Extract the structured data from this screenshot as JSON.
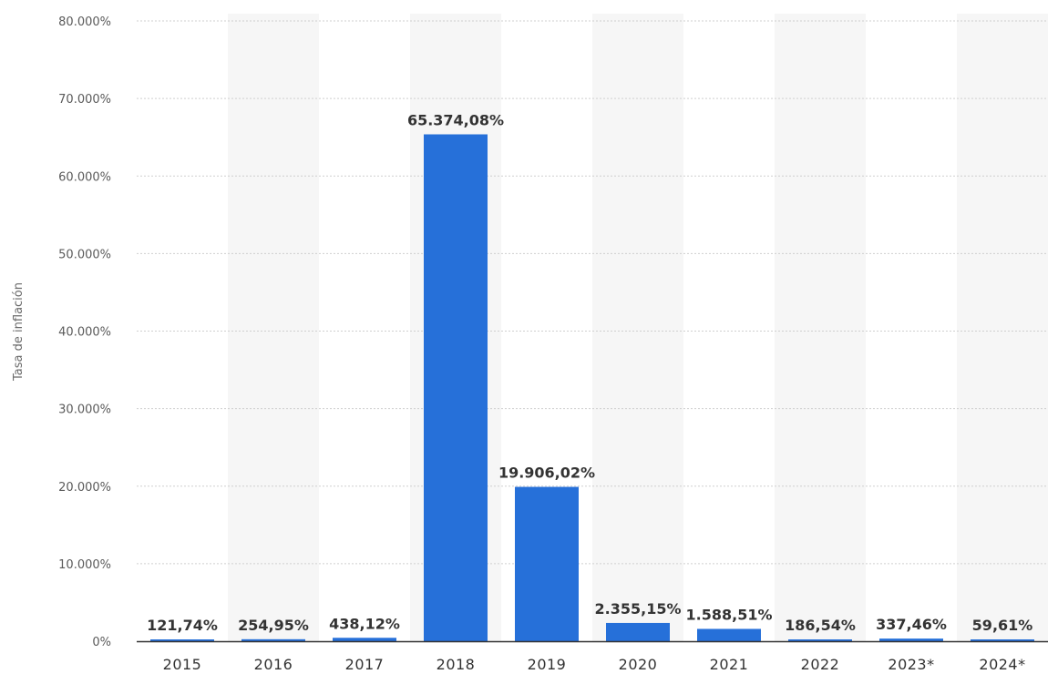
{
  "chart_data": {
    "type": "bar",
    "title": "",
    "xlabel": "",
    "ylabel": "Tasa de inflación",
    "categories": [
      "2015",
      "2016",
      "2017",
      "2018",
      "2019",
      "2020",
      "2021",
      "2022",
      "2023*",
      "2024*"
    ],
    "values": [
      121.74,
      254.95,
      438.12,
      65374.08,
      19906.02,
      2355.15,
      1588.51,
      186.54,
      337.46,
      59.61
    ],
    "value_labels": [
      "121,74%",
      "254,95%",
      "438,12%",
      "65.374,08%",
      "19.906,02%",
      "2.355,15%",
      "1.588,51%",
      "186,54%",
      "337,46%",
      "59,61%"
    ],
    "ylim": [
      0,
      80000
    ],
    "yticks": [
      0,
      10000,
      20000,
      30000,
      40000,
      50000,
      60000,
      70000,
      80000
    ],
    "ytick_labels": [
      "0%",
      "10.000%",
      "20.000%",
      "30.000%",
      "40.000%",
      "50.000%",
      "60.000%",
      "70.000%",
      "80.000%"
    ],
    "grid": true,
    "legend": "none",
    "colors": {
      "bar": "#2670d9",
      "band": "#f6f6f6",
      "grid": "#cfcfcf",
      "axis": "#333333"
    }
  }
}
